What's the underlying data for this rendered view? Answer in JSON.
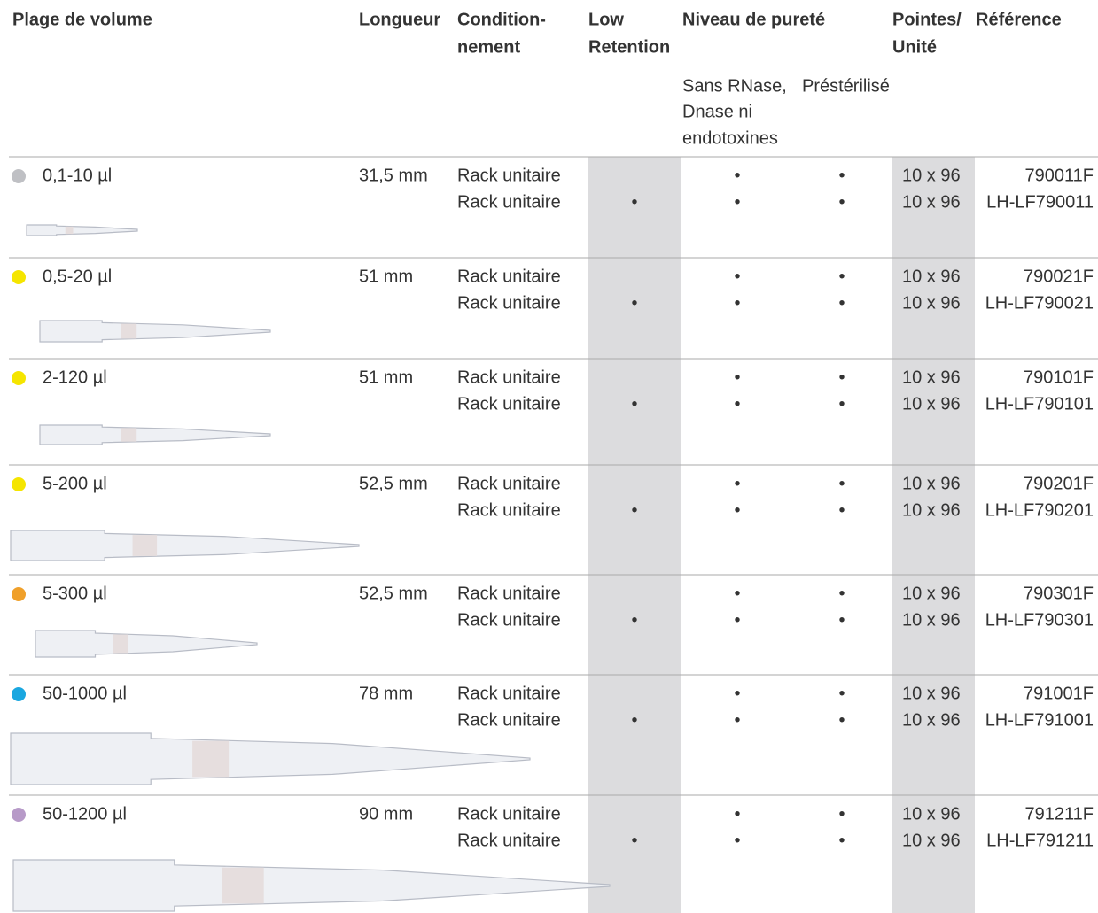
{
  "header": {
    "volume": "Plage de volume",
    "length": "Longueur",
    "packaging": [
      "Condition-",
      "nement"
    ],
    "low_retention": [
      "Low",
      "Retention"
    ],
    "purity": "Niveau de pureté",
    "tips": [
      "Pointes/",
      "Unité"
    ],
    "reference": "Référence",
    "sans_rnase": [
      "Sans RNase,",
      "Dnase ni",
      "endotoxines"
    ],
    "presterilise": "Préstérilisé"
  },
  "rows": [
    {
      "color": "#bfc0c4",
      "volume": "0,1-10 µl",
      "length": "31,5 mm",
      "packaging": [
        "Rack unitaire",
        "Rack unitaire"
      ],
      "low_retention": "•",
      "sans_rnase": [
        "•",
        "•"
      ],
      "presterilise": [
        "•",
        "•"
      ],
      "tips": [
        "10 x 96",
        "10 x 96"
      ],
      "references": [
        "790011F",
        "LH-LF790011"
      ]
    },
    {
      "color": "#f5e500",
      "volume": "0,5-20 µl",
      "length": "51 mm",
      "packaging": [
        "Rack unitaire",
        "Rack unitaire"
      ],
      "low_retention": "•",
      "sans_rnase": [
        "•",
        "•"
      ],
      "presterilise": [
        "•",
        "•"
      ],
      "tips": [
        "10 x 96",
        "10 x 96"
      ],
      "references": [
        "790021F",
        "LH-LF790021"
      ]
    },
    {
      "color": "#f5e500",
      "volume": "2-120 µl",
      "length": "51 mm",
      "packaging": [
        "Rack unitaire",
        "Rack unitaire"
      ],
      "low_retention": "•",
      "sans_rnase": [
        "•",
        "•"
      ],
      "presterilise": [
        "•",
        "•"
      ],
      "tips": [
        "10 x 96",
        "10 x 96"
      ],
      "references": [
        "790101F",
        "LH-LF790101"
      ]
    },
    {
      "color": "#f5e500",
      "volume": "5-200 µl",
      "length": "52,5 mm",
      "packaging": [
        "Rack unitaire",
        "Rack unitaire"
      ],
      "low_retention": "•",
      "sans_rnase": [
        "•",
        "•"
      ],
      "presterilise": [
        "•",
        "•"
      ],
      "tips": [
        "10 x 96",
        "10 x 96"
      ],
      "references": [
        "790201F",
        "LH-LF790201"
      ]
    },
    {
      "color": "#f0a02a",
      "volume": "5-300 µl",
      "length": "52,5 mm",
      "packaging": [
        "Rack unitaire",
        "Rack unitaire"
      ],
      "low_retention": "•",
      "sans_rnase": [
        "•",
        "•"
      ],
      "presterilise": [
        "•",
        "•"
      ],
      "tips": [
        "10 x 96",
        "10 x 96"
      ],
      "references": [
        "790301F",
        "LH-LF790301"
      ]
    },
    {
      "color": "#1aa7e0",
      "volume": "50-1000 µl",
      "length": "78 mm",
      "packaging": [
        "Rack unitaire",
        "Rack unitaire"
      ],
      "low_retention": "•",
      "sans_rnase": [
        "•",
        "•"
      ],
      "presterilise": [
        "•",
        "•"
      ],
      "tips": [
        "10 x 96",
        "10 x 96"
      ],
      "references": [
        "791001F",
        "LH-LF791001"
      ]
    },
    {
      "color": "#b79ac8",
      "volume": "50-1200 µl",
      "length": "90 mm",
      "packaging": [
        "Rack unitaire",
        "Rack unitaire"
      ],
      "low_retention": "•",
      "sans_rnase": [
        "•",
        "•"
      ],
      "presterilise": [
        "•",
        "•"
      ],
      "tips": [
        "10 x 96",
        "10 x 96"
      ],
      "references": [
        "791211F",
        "LH-LF791211"
      ]
    }
  ]
}
